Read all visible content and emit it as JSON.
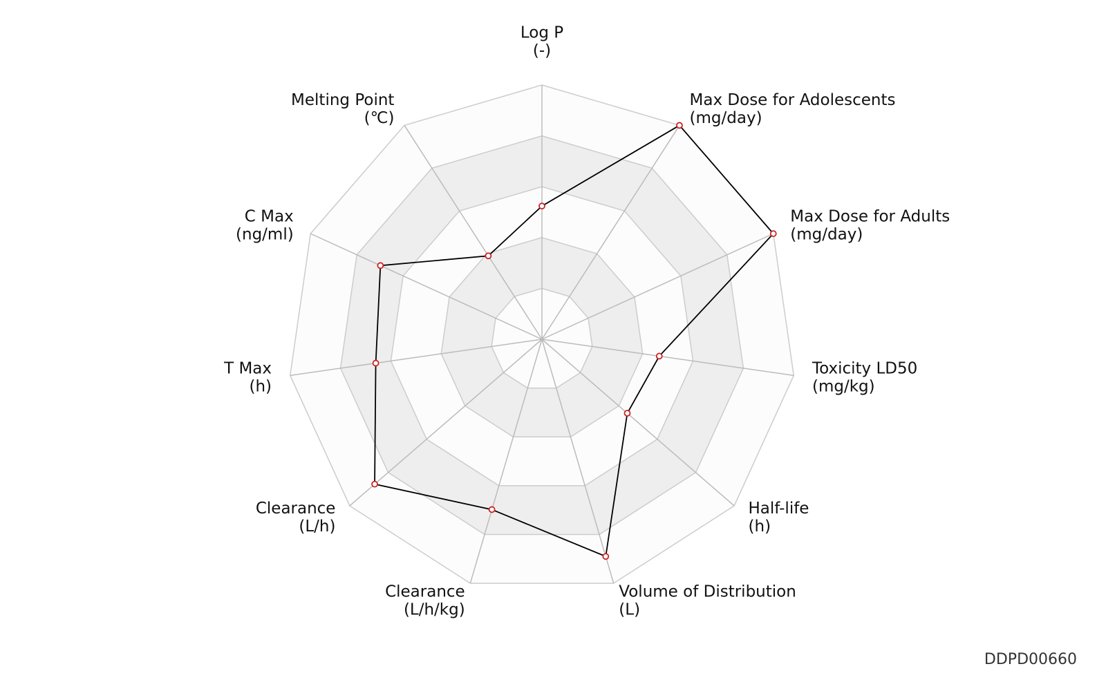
{
  "chart_data": {
    "type": "radar",
    "categories": [
      "Log P",
      "Max Dose for Adolescents",
      "Max Dose for Adults",
      "Toxicity LD50",
      "Half-life",
      "Volume of Distribution",
      "Clearance",
      "Clearance",
      "T Max",
      "C Max",
      "Melting Point"
    ],
    "units": [
      "(-)",
      "(mg/day)",
      "(mg/day)",
      "(mg/kg)",
      "(h)",
      "(L)",
      "(L/h/kg)",
      "(L/h)",
      "(h)",
      "(ng/ml)",
      "(℃)"
    ],
    "values": [
      2.62,
      5.0,
      5.0,
      2.33,
      2.22,
      4.45,
      3.49,
      4.35,
      3.3,
      3.49,
      1.95
    ],
    "color": "#000000",
    "marker_color": "#cc2222",
    "rlim": [
      0,
      5
    ],
    "rticks": [
      1,
      2,
      3,
      4,
      5
    ],
    "footer": "DDPD00660"
  }
}
